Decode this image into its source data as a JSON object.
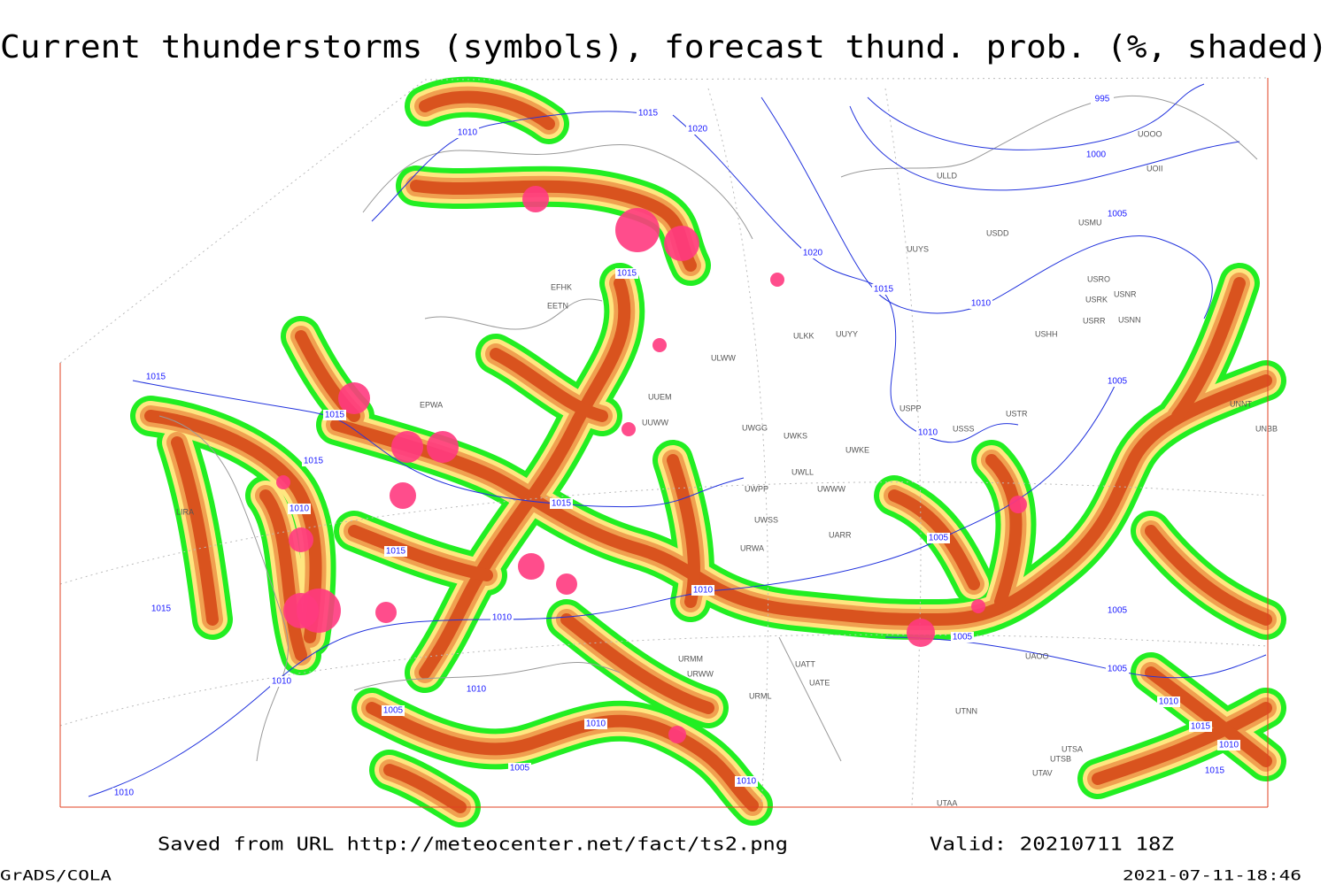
{
  "title": "Current thunderstorms (symbols), forecast thund. prob. (%, shaded)",
  "footer": {
    "source": "Saved from URL http://meteocenter.net/fact/ts2.png",
    "valid": "Valid: 20210711 18Z",
    "software": "GrADS/COLA",
    "timestamp": "2021-07-11-18:46"
  },
  "isobar_labels": [
    "995",
    "1000",
    "1005",
    "1010",
    "1015",
    "1020",
    "1020",
    "1015",
    "1010",
    "1015",
    "1015",
    "1015",
    "1010",
    "1015",
    "1015",
    "1010",
    "1010",
    "1015",
    "1010",
    "1010",
    "1005",
    "1010",
    "1005",
    "1010",
    "1010",
    "1005",
    "1005",
    "1005",
    "1010",
    "1015",
    "1005",
    "1005",
    "1010",
    "1015",
    "1010",
    "1015"
  ],
  "station_labels": [
    "UOOO",
    "UOII",
    "ULLD",
    "USDD",
    "USMU",
    "UUYS",
    "USRO",
    "USRK",
    "USNR",
    "USRR",
    "USNN",
    "USHH",
    "ULKK",
    "UUYY",
    "ULWW",
    "UUEM",
    "UUWW",
    "UWGG",
    "UWKS",
    "UWKE",
    "USPP",
    "USTR",
    "USSS",
    "UNNT",
    "UNBB",
    "UWPP",
    "UWWW",
    "UWLL",
    "UWSS",
    "UARR",
    "URWA",
    "URMM",
    "URWW",
    "URML",
    "UATT",
    "UATE",
    "UTNN",
    "UTSA",
    "UTSB",
    "UTAV",
    "UTAA",
    "UAOO",
    "EFHK",
    "EETN",
    "EPWA",
    "LIRA"
  ]
}
